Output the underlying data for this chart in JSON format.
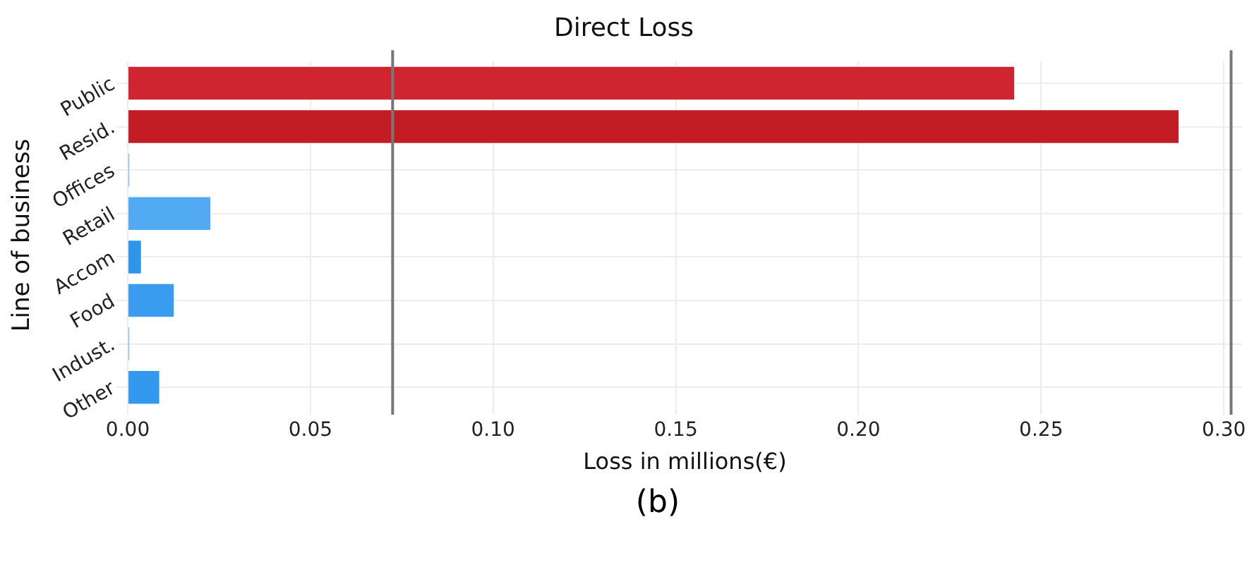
{
  "chart_data": {
    "type": "bar",
    "orientation": "horizontal",
    "title": "Direct Loss",
    "xlabel": "Loss in millions(€)",
    "ylabel": "Line of business",
    "categories": [
      "Public",
      "Resid.",
      "Offices",
      "Retail",
      "Accom",
      "Food",
      "Indust.",
      "Other"
    ],
    "values": [
      0.243,
      0.288,
      0.0005,
      0.023,
      0.004,
      0.013,
      0.0005,
      0.009
    ],
    "colors": [
      "#cf2530",
      "#c41c25",
      "#4aa6f0",
      "#52aaf2",
      "#2f95ea",
      "#3a9cee",
      "#4aa6f0",
      "#3399ee"
    ],
    "xlim": [
      0,
      0.305
    ],
    "xticks": [
      {
        "value": 0,
        "label": "0.00"
      },
      {
        "value": 0.05,
        "label": "0.05"
      },
      {
        "value": 0.1,
        "label": "0.10"
      },
      {
        "value": 0.15,
        "label": "0.15"
      },
      {
        "value": 0.2,
        "label": "0.20"
      },
      {
        "value": 0.25,
        "label": "0.25"
      },
      {
        "value": 0.3,
        "label": "0.30"
      }
    ],
    "ref_lines": [
      {
        "axis": "x",
        "value": 0.0725,
        "color": "#777777"
      },
      {
        "axis": "x",
        "value": 0.302,
        "color": "#777777"
      }
    ],
    "grid": true,
    "legend": false,
    "annotations": [
      "(b)"
    ]
  }
}
